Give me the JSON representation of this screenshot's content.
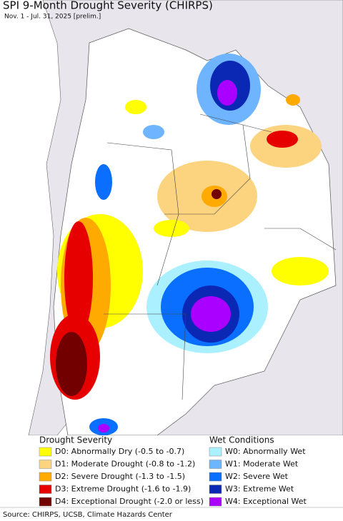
{
  "header": {
    "title": "SPI 9-Month Drought Severity (CHIRPS)",
    "subtitle": "Nov. 1 - Jul. 31, 2025 [prelim.]"
  },
  "legend": {
    "drought": {
      "title": "Drought Severity",
      "items": [
        {
          "label": "D0: Abnormally Dry (-0.5 to -0.7)",
          "color": "#ffff00"
        },
        {
          "label": "D1: Moderate Drought (-0.8 to -1.2)",
          "color": "#fcd37f"
        },
        {
          "label": "D2: Severe Drought (-1.3 to -1.5)",
          "color": "#ffaa00"
        },
        {
          "label": "D3: Extreme Drought (-1.6 to -1.9)",
          "color": "#e60000"
        },
        {
          "label": "D4: Exceptional Drought (-2.0 or less)",
          "color": "#730000"
        }
      ]
    },
    "wet": {
      "title": "Wet Conditions",
      "items": [
        {
          "label": "W0: Abnormally Wet",
          "color": "#aaf0ff"
        },
        {
          "label": "W1: Moderate Wet",
          "color": "#6eb4ff"
        },
        {
          "label": "W2: Severe Wet",
          "color": "#0a6eff"
        },
        {
          "label": "W3: Extreme Wet",
          "color": "#0a28b4"
        },
        {
          "label": "W4: Exceptional Wet",
          "color": "#aa00ff"
        }
      ]
    }
  },
  "source": "Source: CHIRPS, UCSB, Climate Hazards Center"
}
